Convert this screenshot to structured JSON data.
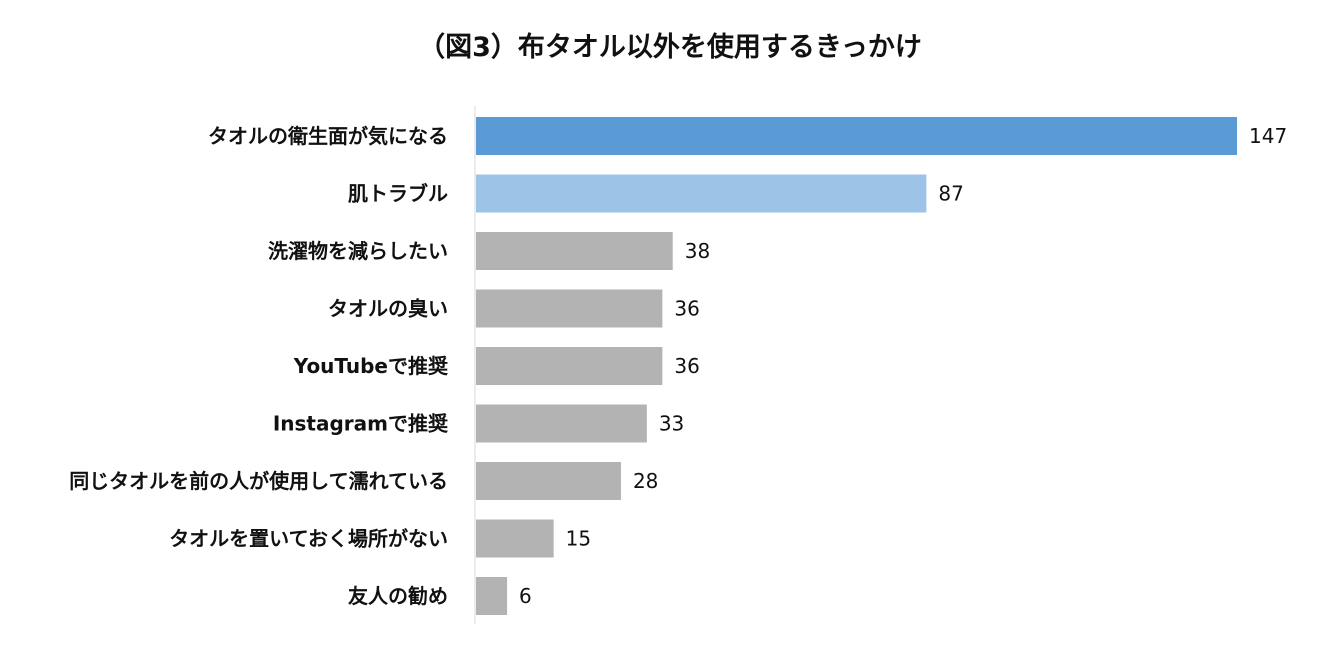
{
  "chart_data": {
    "type": "bar",
    "orientation": "horizontal",
    "title": "（図3）布タオル以外を使用するきっかけ",
    "xlabel": "",
    "ylabel": "",
    "categories": [
      "タオルの衛生面が気になる",
      "肌トラブル",
      "洗濯物を減らしたい",
      "タオルの臭い",
      "YouTubeで推奨",
      "Instagramで推奨",
      "同じタオルを前の人が使用して濡れている",
      "タオルを置いておく場所がない",
      "友人の勧め"
    ],
    "values": [
      147,
      87,
      38,
      36,
      36,
      33,
      28,
      15,
      6
    ],
    "data_labels": [
      "147",
      "87",
      "38",
      "36",
      "36",
      "33",
      "28",
      "15",
      "6"
    ],
    "xlim": [
      0,
      147
    ],
    "grid": false,
    "legend": "none",
    "colors": [
      "#5b9bd5",
      "#9dc3e6",
      "#b3b3b3",
      "#b3b3b3",
      "#b3b3b3",
      "#b3b3b3",
      "#b3b3b3",
      "#b3b3b3",
      "#b3b3b3"
    ],
    "axis_color": "#d9d9d9"
  }
}
